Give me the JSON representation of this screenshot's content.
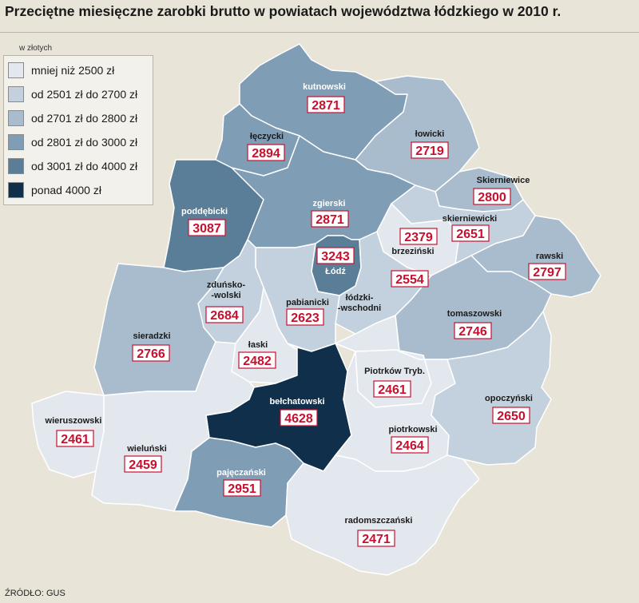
{
  "title": "Przeciętne miesięczne zarobki brutto w powiatach województwa łódzkiego w 2010 r.",
  "unit_label": "w złotych",
  "source": "ŹRÓDŁO: GUS",
  "legend": [
    {
      "label": "mniej niż 2500 zł",
      "color": "#e3e8ee"
    },
    {
      "label": "od 2501 zł do 2700 zł",
      "color": "#c3d0dd"
    },
    {
      "label": "od 2701 zł do 2800 zł",
      "color": "#a8bccd"
    },
    {
      "label": "od 2801 zł do 3000 zł",
      "color": "#7f9db5"
    },
    {
      "label": "od 3001 zł do 4000 zł",
      "color": "#5a7e98"
    },
    {
      "label": "ponad 4000 zł",
      "color": "#102f4a"
    }
  ],
  "districts": [
    {
      "name": "kutnowski",
      "value": "2871"
    },
    {
      "name": "łęczycki",
      "value": "2894"
    },
    {
      "name": "łowicki",
      "value": "2719"
    },
    {
      "name": "Skierniewice",
      "value": "2800"
    },
    {
      "name": "skierniewicki",
      "value": "2651"
    },
    {
      "name": "poddębicki",
      "value": "3087"
    },
    {
      "name": "zgierski",
      "value": "2871"
    },
    {
      "name": "brzeziński",
      "value": "2379"
    },
    {
      "name": "Łódź",
      "value": "3243"
    },
    {
      "name": "rawski",
      "value": "2797"
    },
    {
      "name": "łódzki-wschodni",
      "value": "2554"
    },
    {
      "name": "zduńsko-wolski",
      "value": "2684"
    },
    {
      "name": "pabianicki",
      "value": "2623"
    },
    {
      "name": "sieradzki",
      "value": "2766"
    },
    {
      "name": "tomaszowski",
      "value": "2746"
    },
    {
      "name": "łaski",
      "value": "2482"
    },
    {
      "name": "Piotrków Tryb.",
      "value": "2461"
    },
    {
      "name": "bełchatowski",
      "value": "4628"
    },
    {
      "name": "wieruszowski",
      "value": "2461"
    },
    {
      "name": "wieluński",
      "value": "2459"
    },
    {
      "name": "opoczyński",
      "value": "2650"
    },
    {
      "name": "piotrkowski",
      "value": "2464"
    },
    {
      "name": "pajęczański",
      "value": "2951"
    },
    {
      "name": "radomszczański",
      "value": "2471"
    }
  ],
  "labels": {
    "zdunsko_1": "zduńsko-",
    "zdunsko_2": "-wolski",
    "lodzki_1": "łódzki-",
    "lodzki_2": "-wschodni"
  }
}
